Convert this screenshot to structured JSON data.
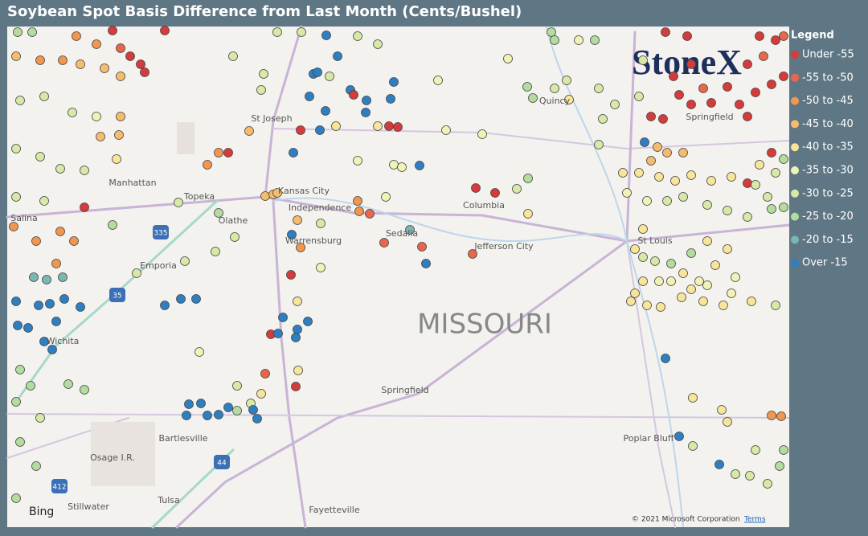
{
  "header": {
    "title": "Soybean Spot Basis Difference from Last Month (Cents/Bushel)"
  },
  "legend": {
    "title": "Legend",
    "items": [
      {
        "label": "Under -55",
        "color": "#d63b3b"
      },
      {
        "label": "-55 to -50",
        "color": "#e8674a"
      },
      {
        "label": "-50 to -45",
        "color": "#f0964f"
      },
      {
        "label": "-45 to -40",
        "color": "#f5bd6b"
      },
      {
        "label": "-40 to -35",
        "color": "#f7e59a"
      },
      {
        "label": "-35 to -30",
        "color": "#f2f2b6"
      },
      {
        "label": "-30 to -25",
        "color": "#d8e8a6"
      },
      {
        "label": "-25 to -20",
        "color": "#b3dc9e"
      },
      {
        "label": "-20 to -15",
        "color": "#79b7b0"
      },
      {
        "label": "Over -15",
        "color": "#2e7fc2"
      }
    ]
  },
  "map": {
    "labels": [
      "St Joseph",
      "Manhattan",
      "Topeka",
      "Kansas City",
      "Independence",
      "Columbia",
      "Salina",
      "Olathe",
      "Warrensburg",
      "Sedalia",
      "Jefferson City",
      "St Louis",
      "Emporia",
      "Quincy",
      "Springfield",
      "MISSOURI",
      "Wichita",
      "Springfield",
      "Bartlesville",
      "Osage I.R.",
      "Poplar Bluff",
      "Tulsa",
      "Stillwater",
      "Fayetteville"
    ],
    "shields": [
      "335",
      "35",
      "44",
      "412"
    ]
  },
  "logo": "StoneX",
  "attribution": {
    "bing": "Bing",
    "copyright": "© 2021 Microsoft Corporation",
    "terms": "Terms"
  }
}
